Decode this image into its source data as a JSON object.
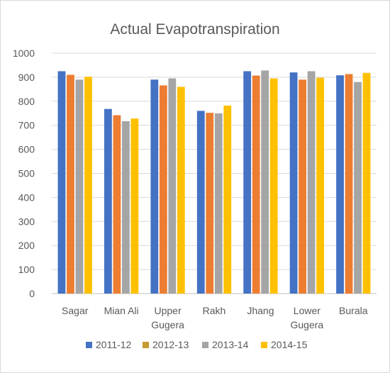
{
  "chart_data": {
    "type": "bar",
    "title": "Actual Evapotranspiration",
    "xlabel": "",
    "ylabel": "",
    "ylim": [
      0,
      1000
    ],
    "yticks": [
      0,
      100,
      200,
      300,
      400,
      500,
      600,
      700,
      800,
      900,
      1000
    ],
    "grid": true,
    "legend_position": "bottom",
    "categories": [
      "Sagar",
      "Mian Ali",
      "Upper Gugera",
      "Rakh",
      "Jhang",
      "Lower Gugera",
      "Burala"
    ],
    "category_lines": [
      [
        "Sagar"
      ],
      [
        "Mian Ali"
      ],
      [
        "Upper",
        "Gugera"
      ],
      [
        "Rakh"
      ],
      [
        "Jhang"
      ],
      [
        "Lower",
        "Gugera"
      ],
      [
        "Burala"
      ]
    ],
    "series": [
      {
        "name": "2011-12",
        "color": "#4472C4",
        "values": [
          925,
          768,
          890,
          760,
          925,
          920,
          908
        ]
      },
      {
        "name": "2012-13",
        "color": "#ED7D31",
        "values": [
          910,
          742,
          866,
          752,
          907,
          890,
          913
        ]
      },
      {
        "name": "2013-14",
        "color": "#A5A5A5",
        "values": [
          890,
          717,
          895,
          750,
          928,
          925,
          880
        ]
      },
      {
        "name": "2014-15",
        "color": "#FFC000",
        "values": [
          902,
          728,
          860,
          782,
          895,
          898,
          918
        ]
      }
    ],
    "legend_marker_colors": [
      "#4472C4",
      "#C59A30",
      "#A5A5A5",
      "#FFC000"
    ]
  }
}
